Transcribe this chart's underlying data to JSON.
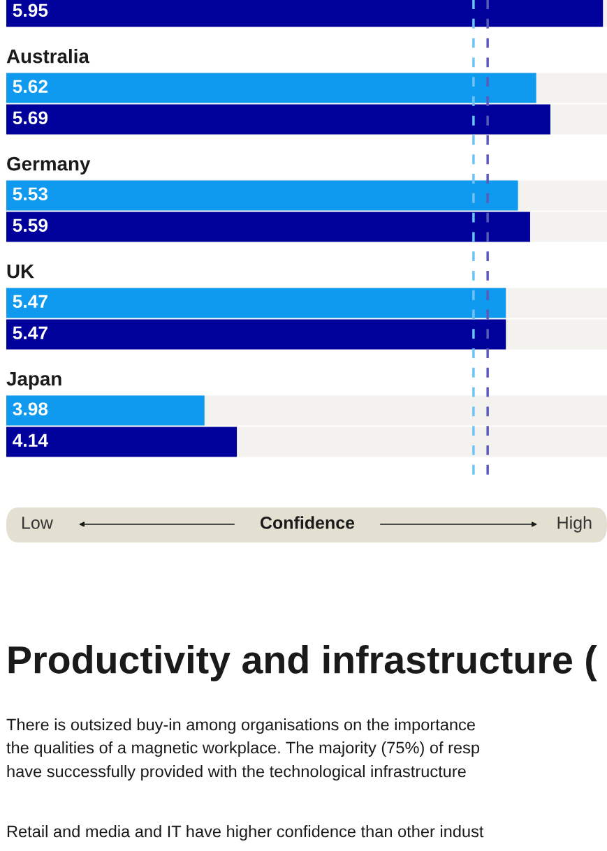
{
  "chart_data": {
    "type": "bar",
    "orientation": "horizontal",
    "categories": [
      null,
      "Australia",
      "Germany",
      "UK",
      "Japan"
    ],
    "series": [
      {
        "color": "#0f9af0",
        "values": [
          null,
          5.62,
          5.53,
          5.47,
          3.98
        ]
      },
      {
        "color": "#00009a",
        "values": [
          5.95,
          5.69,
          5.59,
          5.47,
          4.14
        ]
      }
    ],
    "xlim": [
      3,
      5.97
    ],
    "tick_labels": false,
    "data_labels": true,
    "ref_lines": [
      {
        "axis": "x",
        "value": 5.31,
        "color": "#6ec3f5",
        "line_style": "dashed"
      },
      {
        "axis": "x",
        "value": 5.38,
        "color": "#5a5ab8",
        "line_style": "dashed"
      }
    ],
    "xlabel": "Confidence",
    "annotations": [
      "Low",
      "High",
      "Productivity and infrastructure (",
      "There is outsized buy-in among organisations on the importance",
      "the qualities of a magnetic workplace. The majority (75%) of resp",
      "have successfully provided with the technological infrastructure",
      "Retail and media and IT have higher confidence than other indust"
    ]
  }
}
